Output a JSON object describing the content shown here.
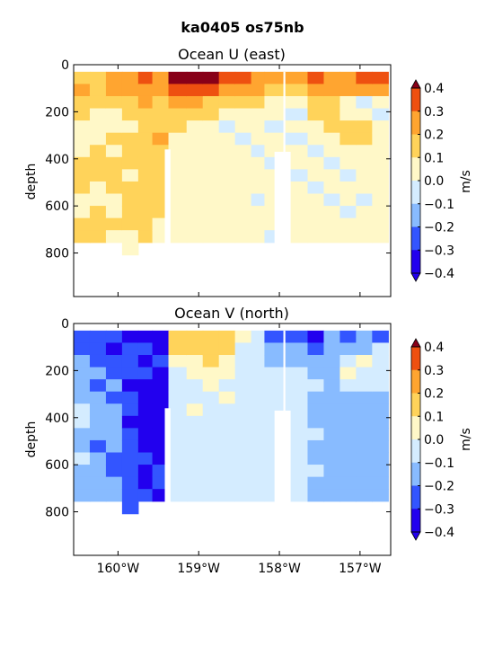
{
  "figure": {
    "title": "ka0405 os75nb"
  },
  "chart_data": [
    {
      "type": "heatmap",
      "title": "Ocean U (east)",
      "xlabel": "",
      "ylabel": "depth",
      "xlim": [
        -160.55,
        -156.62
      ],
      "ylim": [
        985,
        0
      ],
      "yticks": [
        0,
        200,
        400,
        600,
        800
      ],
      "yticklabels": [
        "0",
        "200",
        "400",
        "600",
        "800"
      ],
      "xticks": [
        -160,
        -159,
        -158,
        -157
      ],
      "xticklabels": [
        "160°W",
        "159°W",
        "158°W",
        "157°W"
      ],
      "x_tick_labels_visible": false,
      "colorbar": {
        "label": "m/s",
        "levels": [
          -0.4,
          -0.3,
          -0.2,
          -0.1,
          0.0,
          0.1,
          0.2,
          0.3,
          0.4
        ],
        "ticklabels": [
          "0.4",
          "0.3",
          "0.2",
          "0.1",
          "0.0",
          "−0.1",
          "−0.2",
          "−0.3",
          "−0.4"
        ],
        "extend": "both"
      },
      "gaps_lon": [
        [
          -159.42,
          -159.35
        ],
        [
          -158.06,
          -157.86
        ]
      ],
      "columns": [
        {
          "lon": -160.45,
          "v": [
            0.12,
            0.2,
            0.18,
            0.15,
            0.05,
            0.02,
            0.08,
            0.1,
            0.12,
            0.1,
            0.08,
            0.05,
            0.1,
            0.12
          ]
        },
        {
          "lon": -160.25,
          "v": [
            0.15,
            0.18,
            0.1,
            0.05,
            0.02,
            0.05,
            0.1,
            0.12,
            0.1,
            0.08,
            0.05,
            0.1,
            0.12,
            0.1
          ]
        },
        {
          "lon": -160.05,
          "v": [
            0.2,
            0.25,
            0.15,
            0.08,
            0.05,
            0.1,
            0.05,
            0.12,
            0.15,
            0.1,
            0.08,
            0.05,
            0.1,
            0.08
          ]
        },
        {
          "lon": -159.85,
          "v": [
            0.28,
            0.22,
            0.18,
            0.1,
            0.08,
            0.12,
            0.15,
            0.1,
            0.05,
            0.1,
            0.12,
            0.15,
            0.1,
            0.05
          ]
        },
        {
          "lon": -159.65,
          "v": [
            0.32,
            0.25,
            0.2,
            0.15,
            0.12,
            0.1,
            0.12,
            0.15,
            0.18,
            0.12,
            0.1,
            0.12,
            0.15,
            0.12
          ]
        },
        {
          "lon": -159.5,
          "v": [
            0.3,
            0.22,
            0.18,
            0.12,
            0.15,
            0.2,
            0.15,
            0.12,
            0.1,
            0.15,
            0.12,
            0.1,
            0.05,
            0.08
          ]
        },
        {
          "lon": -159.25,
          "v": [
            0.42,
            0.35,
            0.2,
            0.12,
            0.1,
            0.05,
            0.05,
            0.05,
            0.05,
            0.05,
            0.05,
            0.05,
            0.05,
            0.05
          ]
        },
        {
          "lon": -159.05,
          "v": [
            0.45,
            0.38,
            0.22,
            0.12,
            0.08,
            0.05,
            0.02,
            0.05,
            0.05,
            0.05,
            0.05,
            0.05,
            0.05,
            0.05
          ]
        },
        {
          "lon": -158.85,
          "v": [
            0.42,
            0.35,
            0.18,
            0.1,
            0.05,
            0.05,
            0.05,
            0.02,
            0.05,
            0.05,
            0.05,
            0.05,
            0.05,
            0.05
          ]
        },
        {
          "lon": -158.65,
          "v": [
            0.38,
            0.3,
            0.12,
            0.08,
            -0.05,
            0.05,
            0.05,
            0.05,
            0.02,
            0.05,
            0.05,
            0.05,
            0.05,
            0.05
          ]
        },
        {
          "lon": -158.45,
          "v": [
            0.35,
            0.28,
            0.15,
            0.05,
            0.05,
            -0.05,
            0.02,
            0.05,
            0.05,
            0.05,
            0.05,
            0.02,
            0.05,
            0.05
          ]
        },
        {
          "lon": -158.25,
          "v": [
            0.3,
            0.22,
            0.12,
            0.05,
            0.02,
            0.05,
            -0.05,
            0.05,
            0.02,
            0.05,
            -0.05,
            0.05,
            0.05,
            0.05
          ]
        },
        {
          "lon": -158.12,
          "v": [
            0.25,
            0.15,
            0.08,
            0.05,
            -0.05,
            0.05,
            0.05,
            -0.05,
            0.05,
            0.02,
            0.05,
            0.05,
            0.05,
            -0.05
          ]
        },
        {
          "lon": -157.75,
          "v": [
            0.3,
            0.18,
            0.08,
            -0.05,
            0.05,
            -0.05,
            0.05,
            0.05,
            -0.05,
            0.05,
            0.02,
            0.05,
            0.05,
            0.05
          ]
        },
        {
          "lon": -157.55,
          "v": [
            0.32,
            0.22,
            0.15,
            0.1,
            0.05,
            0.05,
            -0.05,
            0.05,
            0.05,
            -0.05,
            0.05,
            0.05,
            0.02,
            0.05
          ]
        },
        {
          "lon": -157.35,
          "v": [
            0.28,
            0.2,
            0.12,
            0.15,
            0.12,
            0.05,
            0.05,
            -0.05,
            0.05,
            0.05,
            -0.05,
            0.05,
            0.05,
            0.05
          ]
        },
        {
          "lon": -157.15,
          "v": [
            0.3,
            0.22,
            0.05,
            0.08,
            0.12,
            0.1,
            0.05,
            0.05,
            -0.05,
            0.05,
            0.05,
            -0.05,
            0.05,
            0.05
          ]
        },
        {
          "lon": -156.95,
          "v": [
            0.35,
            0.25,
            -0.05,
            0.05,
            0.1,
            0.12,
            0.08,
            0.05,
            0.05,
            0.02,
            -0.05,
            0.05,
            0.05,
            0.05
          ]
        },
        {
          "lon": -156.75,
          "v": [
            0.32,
            0.2,
            0.05,
            -0.05,
            0.05,
            0.08,
            0.05,
            0.05,
            0.02,
            0.05,
            0.05,
            0.05,
            0.05,
            0.05
          ]
        }
      ]
    },
    {
      "type": "heatmap",
      "title": "Ocean V (north)",
      "xlabel": "",
      "ylabel": "depth",
      "xlim": [
        -160.55,
        -156.62
      ],
      "ylim": [
        985,
        0
      ],
      "yticks": [
        0,
        200,
        400,
        600,
        800
      ],
      "yticklabels": [
        "0",
        "200",
        "400",
        "600",
        "800"
      ],
      "xticks": [
        -160,
        -159,
        -158,
        -157
      ],
      "xticklabels": [
        "160°W",
        "159°W",
        "158°W",
        "157°W"
      ],
      "x_tick_labels_visible": true,
      "colorbar": {
        "label": "m/s",
        "levels": [
          -0.4,
          -0.3,
          -0.2,
          -0.1,
          0.0,
          0.1,
          0.2,
          0.3,
          0.4
        ],
        "ticklabels": [
          "0.4",
          "0.3",
          "0.2",
          "0.1",
          "0.0",
          "−0.1",
          "−0.2",
          "−0.3",
          "−0.4"
        ],
        "extend": "both"
      },
      "gaps_lon": [
        [
          -159.42,
          -159.35
        ],
        [
          -158.06,
          -157.86
        ]
      ],
      "columns": [
        {
          "lon": -160.45,
          "v": [
            -0.25,
            -0.28,
            -0.15,
            -0.12,
            -0.2,
            -0.15,
            -0.05,
            -0.1,
            -0.15,
            -0.12,
            -0.1,
            -0.15,
            -0.18,
            -0.12
          ]
        },
        {
          "lon": -160.25,
          "v": [
            -0.3,
            -0.25,
            -0.22,
            -0.18,
            -0.25,
            -0.2,
            -0.15,
            -0.12,
            -0.18,
            -0.22,
            -0.15,
            -0.12,
            -0.15,
            -0.18
          ]
        },
        {
          "lon": -160.05,
          "v": [
            -0.28,
            -0.32,
            -0.25,
            -0.22,
            -0.18,
            -0.25,
            -0.2,
            -0.15,
            -0.12,
            -0.18,
            -0.22,
            -0.25,
            -0.2,
            -0.15
          ]
        },
        {
          "lon": -159.85,
          "v": [
            -0.32,
            -0.28,
            -0.3,
            -0.25,
            -0.32,
            -0.28,
            -0.25,
            -0.32,
            -0.28,
            -0.3,
            -0.25,
            -0.22,
            -0.28,
            -0.25
          ]
        },
        {
          "lon": -159.65,
          "v": [
            -0.38,
            -0.3,
            -0.32,
            -0.28,
            -0.35,
            -0.32,
            -0.38,
            -0.35,
            -0.32,
            -0.35,
            -0.3,
            -0.35,
            -0.32,
            -0.3
          ]
        },
        {
          "lon": -159.5,
          "v": [
            -0.42,
            -0.35,
            -0.28,
            -0.32,
            -0.38,
            -0.42,
            -0.38,
            -0.35,
            -0.38,
            -0.32,
            -0.35,
            -0.28,
            -0.3,
            -0.32
          ]
        },
        {
          "lon": -159.25,
          "v": [
            0.12,
            0.1,
            0.05,
            -0.05,
            -0.08,
            -0.05,
            -0.05,
            -0.08,
            -0.05,
            -0.05,
            -0.05,
            -0.05,
            -0.05,
            -0.05
          ]
        },
        {
          "lon": -159.05,
          "v": [
            0.15,
            0.12,
            0.08,
            0.05,
            -0.05,
            -0.05,
            0.05,
            -0.05,
            -0.05,
            -0.05,
            -0.05,
            -0.05,
            -0.05,
            -0.05
          ]
        },
        {
          "lon": -158.85,
          "v": [
            0.18,
            0.12,
            0.1,
            0.05,
            0.05,
            -0.05,
            -0.05,
            -0.05,
            -0.05,
            -0.05,
            -0.05,
            -0.05,
            -0.05,
            -0.05
          ]
        },
        {
          "lon": -158.65,
          "v": [
            0.15,
            0.1,
            0.05,
            0.02,
            -0.05,
            0.05,
            -0.05,
            -0.05,
            -0.05,
            -0.05,
            -0.05,
            -0.05,
            -0.05,
            -0.05
          ]
        },
        {
          "lon": -158.45,
          "v": [
            0.05,
            -0.05,
            -0.05,
            -0.08,
            -0.05,
            -0.05,
            -0.08,
            -0.05,
            -0.05,
            -0.08,
            -0.05,
            -0.05,
            -0.05,
            -0.05
          ]
        },
        {
          "lon": -158.25,
          "v": [
            -0.1,
            -0.05,
            -0.08,
            -0.05,
            -0.08,
            -0.05,
            -0.05,
            -0.08,
            -0.05,
            -0.05,
            -0.08,
            -0.05,
            -0.05,
            -0.05
          ]
        },
        {
          "lon": -158.12,
          "v": [
            -0.25,
            -0.2,
            -0.12,
            -0.08,
            -0.05,
            -0.08,
            -0.05,
            -0.05,
            -0.08,
            -0.05,
            -0.05,
            -0.05,
            -0.05,
            -0.05
          ]
        },
        {
          "lon": -157.75,
          "v": [
            -0.22,
            -0.18,
            -0.12,
            -0.08,
            -0.05,
            -0.05,
            -0.08,
            -0.05,
            -0.05,
            -0.05,
            -0.05,
            -0.05,
            -0.05,
            -0.05
          ]
        },
        {
          "lon": -157.55,
          "v": [
            -0.32,
            -0.25,
            -0.15,
            -0.12,
            -0.08,
            -0.12,
            -0.15,
            -0.12,
            -0.1,
            -0.15,
            -0.12,
            -0.08,
            -0.12,
            -0.15
          ]
        },
        {
          "lon": -157.35,
          "v": [
            -0.15,
            -0.12,
            -0.18,
            -0.15,
            -0.12,
            -0.18,
            -0.15,
            -0.12,
            -0.18,
            -0.15,
            -0.12,
            -0.15,
            -0.12,
            -0.18
          ]
        },
        {
          "lon": -157.15,
          "v": [
            -0.28,
            -0.15,
            -0.05,
            0.05,
            -0.05,
            -0.12,
            -0.15,
            -0.18,
            -0.15,
            -0.12,
            -0.15,
            -0.12,
            -0.15,
            -0.12
          ]
        },
        {
          "lon": -156.95,
          "v": [
            -0.18,
            -0.12,
            0.05,
            -0.05,
            -0.08,
            -0.12,
            -0.15,
            -0.12,
            -0.18,
            -0.15,
            -0.12,
            -0.15,
            -0.12,
            -0.15
          ]
        },
        {
          "lon": -156.75,
          "v": [
            -0.22,
            -0.1,
            -0.05,
            -0.08,
            -0.05,
            -0.12,
            -0.15,
            -0.12,
            -0.15,
            -0.12,
            -0.15,
            -0.12,
            -0.12,
            -0.15
          ]
        }
      ]
    }
  ],
  "palette": {
    "under": "#2200ee",
    "bins": [
      "#2200ee",
      "#3355ff",
      "#88bbff",
      "#d4ecff",
      "#fff8c8",
      "#ffd35a",
      "#ffa530",
      "#ee5010"
    ],
    "over": "#880018",
    "frame": "#000000"
  }
}
